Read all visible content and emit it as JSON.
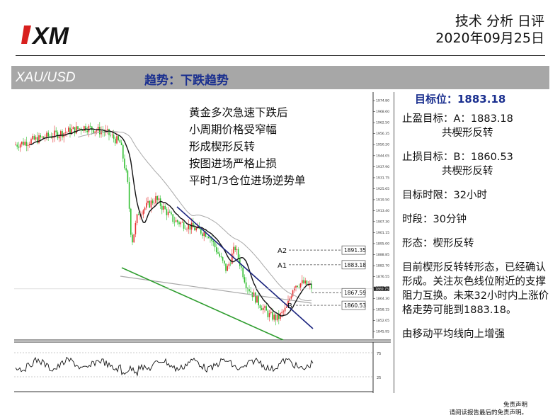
{
  "header": {
    "logo_text": "XM",
    "doc_type": "技术 分析 日评",
    "date": "2020年09月25日"
  },
  "title_bar": {
    "symbol": "XAU/USD",
    "trend": "趋势：下跌趋势"
  },
  "chart": {
    "annotation_lines": [
      "黄金多次急速下跌后",
      "小周期价格受窄幅",
      "形成楔形反转",
      "按图进场严格止损",
      "平时1/3仓位进场逆势单"
    ],
    "price_axis_labels": [
      "1974.80",
      "1968.60",
      "1962.50",
      "1956.35",
      "1950.20",
      "1944.05",
      "1937.90",
      "1931.75",
      "1925.65",
      "1919.50",
      "1913.40",
      "1907.30",
      "1901.15",
      "1895.00",
      "1888.85",
      "1882.70",
      "1876.55",
      "1870.45",
      "1864.30",
      "1858.15",
      "1852.05",
      "1845.95"
    ],
    "current_price": "1869.75",
    "levels": [
      {
        "name": "A2",
        "value": "1891.35"
      },
      {
        "name": "A1",
        "value": "1883.18"
      },
      {
        "name": "",
        "value": "1867.59"
      },
      {
        "name": "B",
        "value": "1860.53"
      }
    ],
    "osc_axis_labels": [
      "75",
      "25"
    ],
    "colors": {
      "up": "#e53030",
      "down": "#2fbf2f",
      "ma": "#111111",
      "trendline": "#1a237e",
      "support": "#2e9d2e",
      "ma_slow": "#9a9a9a"
    }
  },
  "panel": {
    "target_label": "目标位：1883.18",
    "tp_line": "止盈目标：A：1883.18",
    "tp_note": "共楔形反转",
    "sl_line": "止损目标：B：1860.53",
    "sl_note": "共楔形反转",
    "horizon": "目标时限：32小时",
    "timeframe": "时段：30分钟",
    "pattern": "形态：楔形反转",
    "analysis": "目前楔形反转转形态，已经确认形成。关注灰色线位附近的支撑阻力互换。未来32小时内上涨价格走势可能到1883.18。",
    "ma_note": "由移动平均线向上增强"
  },
  "disclaimer": {
    "line1": "免责声明",
    "line2": "请阅读报告最后的免责声明。"
  }
}
